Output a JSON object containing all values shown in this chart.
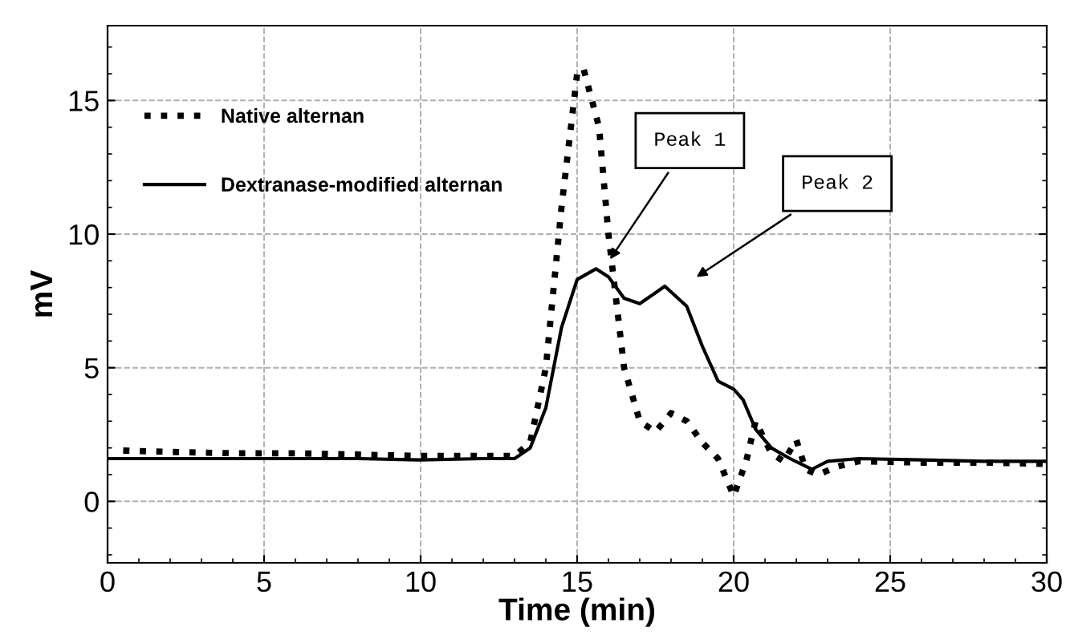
{
  "chart_data": {
    "type": "line",
    "xlabel": "Time (min)",
    "ylabel": "mV",
    "xlim": [
      0,
      30
    ],
    "ylim": [
      -2.3,
      17.8
    ],
    "xticks": [
      0,
      5,
      10,
      15,
      20,
      25,
      30
    ],
    "yticks": [
      0,
      5,
      10,
      15
    ],
    "grid": true,
    "legend": "top left",
    "marker": "none",
    "series": [
      {
        "name": "Native alternan",
        "color": "#000000",
        "line_style": "dotted",
        "x": [
          0.5,
          2,
          4,
          6,
          8,
          10,
          12,
          13,
          13.5,
          14,
          14.5,
          15,
          15.2,
          15.7,
          16,
          16.5,
          17,
          17.5,
          18,
          18.5,
          19,
          19.5,
          20,
          20.4,
          20.7,
          21.2,
          21.6,
          22,
          22.3,
          22.7,
          23.3,
          24,
          26,
          28,
          30
        ],
        "values": [
          1.9,
          1.85,
          1.8,
          1.8,
          1.75,
          1.7,
          1.7,
          1.7,
          2.2,
          5,
          11,
          16,
          16.2,
          14,
          10,
          5,
          3,
          2.6,
          3.3,
          3,
          2.2,
          1.6,
          0.2,
          1.5,
          3.0,
          1.8,
          1.5,
          2.3,
          1.2,
          1.0,
          1.3,
          1.5,
          1.45,
          1.45,
          1.4
        ]
      },
      {
        "name": "Dextranase-modified alternan",
        "color": "#000000",
        "line_style": "solid",
        "x": [
          0,
          2,
          4,
          6,
          8,
          10,
          12,
          13,
          13.5,
          14,
          14.5,
          15,
          15.6,
          16,
          16.5,
          17,
          17.5,
          17.8,
          18.5,
          19,
          19.5,
          20,
          20.3,
          20.7,
          21.2,
          21.8,
          22.5,
          23,
          24,
          26,
          28,
          30
        ],
        "values": [
          1.6,
          1.6,
          1.6,
          1.6,
          1.6,
          1.55,
          1.6,
          1.6,
          2.0,
          3.5,
          6.5,
          8.3,
          8.7,
          8.4,
          7.6,
          7.4,
          7.8,
          8.05,
          7.3,
          5.8,
          4.5,
          4.2,
          3.8,
          2.7,
          2.0,
          1.6,
          1.2,
          1.5,
          1.6,
          1.55,
          1.5,
          1.5
        ]
      }
    ],
    "annotations": [
      "Peak 1",
      "Peak 2"
    ]
  }
}
